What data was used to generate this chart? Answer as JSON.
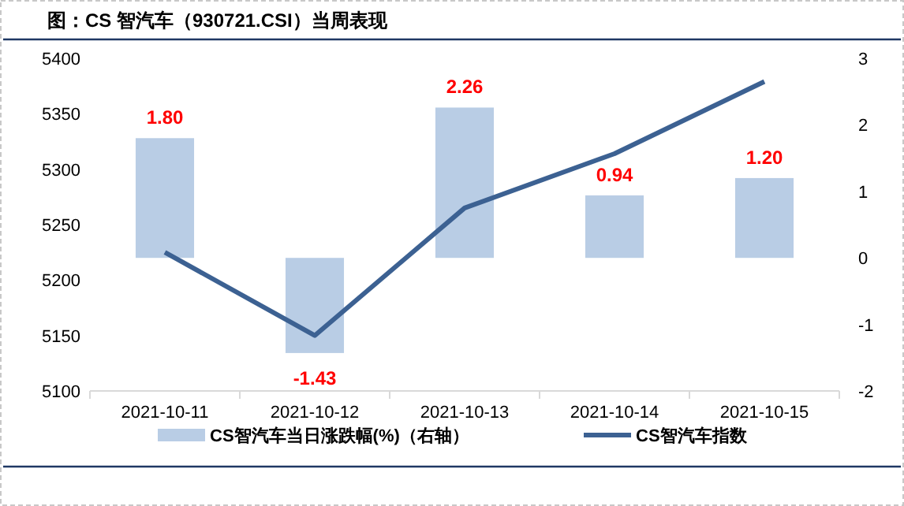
{
  "chart_data": {
    "type": "bar",
    "title": "图：CS 智汽车（930721.CSI）当周表现",
    "categories": [
      "2021-10-11",
      "2021-10-12",
      "2021-10-13",
      "2021-10-14",
      "2021-10-15"
    ],
    "series": [
      {
        "name": "CS智汽车当日涨跌幅(%)（右轴）",
        "axis": "y2",
        "color": "#b9cde5",
        "values": [
          1.8,
          -1.43,
          2.26,
          0.94,
          1.2
        ],
        "value_labels": [
          "1.80",
          "-1.43",
          "2.26",
          "0.94",
          "1.20"
        ]
      },
      {
        "name": "CS智汽车指数",
        "type": "line",
        "color": "#3c6192",
        "values": [
          5225,
          5150,
          5265,
          5314,
          5379
        ]
      }
    ],
    "ylim": [
      5100,
      5400
    ],
    "yticks": [
      5100,
      5150,
      5200,
      5250,
      5300,
      5350,
      5400
    ],
    "y2lim": [
      -2,
      3
    ],
    "y2ticks": [
      -2,
      -1,
      0,
      1,
      2,
      3
    ],
    "legend": "bottom",
    "grid": false
  }
}
